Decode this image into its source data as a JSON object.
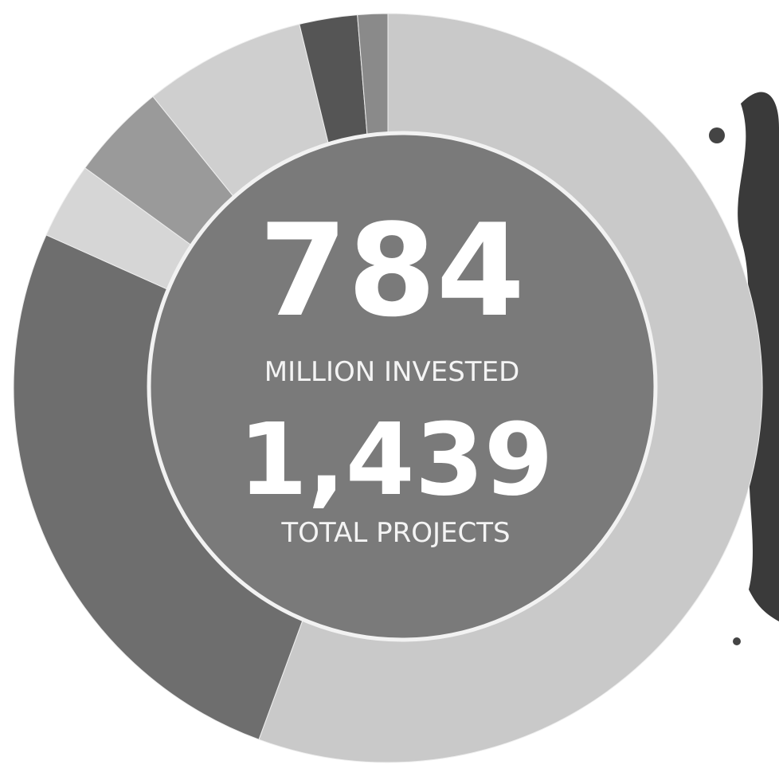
{
  "chart_data": {
    "type": "pie",
    "values": [
      55.6,
      26.1,
      3.3,
      4.2,
      7.0,
      2.5,
      1.3
    ],
    "colors": [
      "#c9c9c9",
      "#6e6e6e",
      "#d6d6d6",
      "#9a9a9a",
      "#cfcfcf",
      "#555555",
      "#8a8a8a"
    ],
    "annotations": [
      "784",
      "MILLION INVESTED",
      "1,439",
      "TOTAL PROJECTS"
    ]
  }
}
